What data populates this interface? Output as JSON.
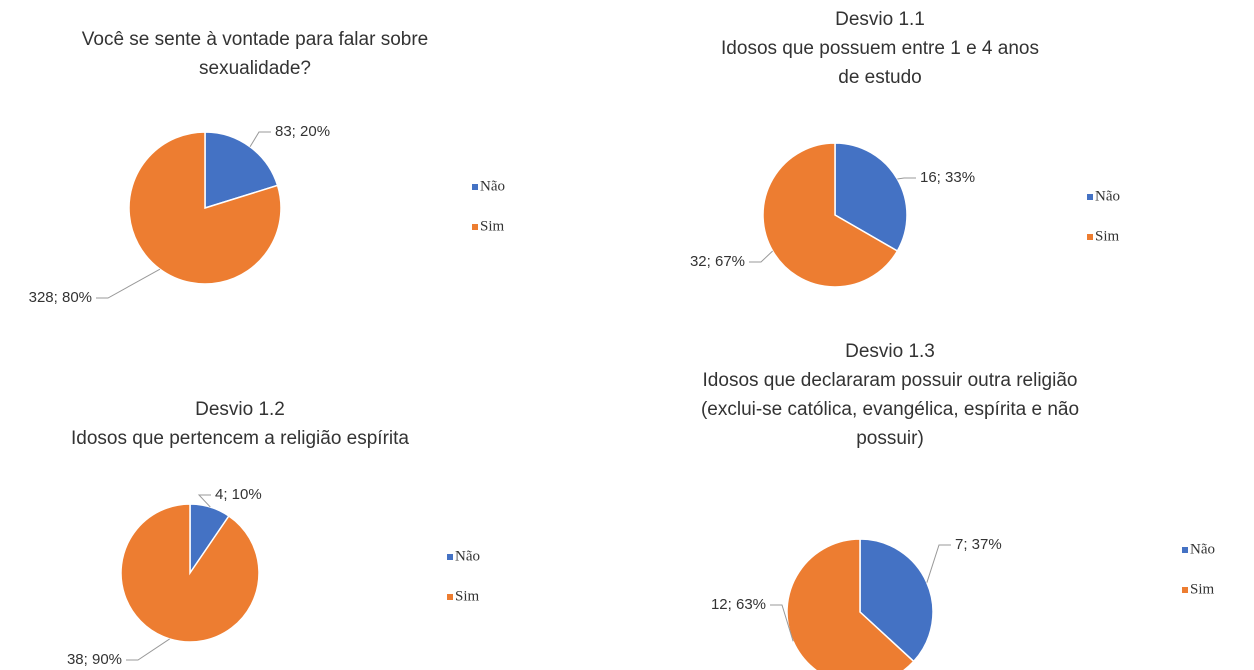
{
  "chart_data": [
    {
      "type": "pie",
      "title": [
        "Você se sente à vontade para falar sobre",
        "sexualidade?"
      ],
      "categories": [
        "Não",
        "Sim"
      ],
      "values": [
        83,
        328
      ],
      "value_labels": [
        "83; 20%",
        "328; 80%"
      ],
      "colors": [
        "#4472c4",
        "#ed7d31"
      ]
    },
    {
      "type": "pie",
      "title": [
        "Desvio 1.1",
        "Idosos que possuem entre 1 e 4 anos",
        "de estudo"
      ],
      "categories": [
        "Não",
        "Sim"
      ],
      "values": [
        16,
        32
      ],
      "value_labels": [
        "16; 33%",
        "32; 67%"
      ],
      "colors": [
        "#4472c4",
        "#ed7d31"
      ]
    },
    {
      "type": "pie",
      "title": [
        "Desvio 1.2",
        "Idosos que pertencem a religião espírita"
      ],
      "categories": [
        "Não",
        "Sim"
      ],
      "values": [
        4,
        38
      ],
      "value_labels": [
        "4; 10%",
        "38; 90%"
      ],
      "colors": [
        "#4472c4",
        "#ed7d31"
      ]
    },
    {
      "type": "pie",
      "title": [
        "Desvio 1.3",
        "Idosos que declararam possuir outra religião",
        "(exclui-se católica, evangélica, espírita e não",
        "possuir)"
      ],
      "categories": [
        "Não",
        "Sim"
      ],
      "values": [
        7,
        12
      ],
      "value_labels": [
        "7; 37%",
        "12; 63%"
      ],
      "colors": [
        "#4472c4",
        "#ed7d31"
      ]
    }
  ]
}
